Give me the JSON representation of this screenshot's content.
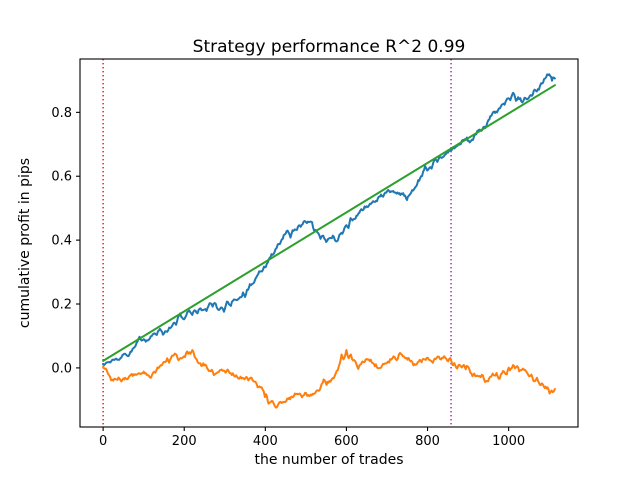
{
  "figure": {
    "background": "#ffffff",
    "frame_color": "#000000",
    "text_color": "#000000"
  },
  "chart_data": {
    "type": "line",
    "title": "Strategy performance R^2 0.99",
    "xlabel": "the number of trades",
    "ylabel": "cumulative profit in pips",
    "xlim": [
      -57,
      1171
    ],
    "ylim": [
      -0.185,
      0.967
    ],
    "grid": false,
    "legend": "none",
    "x_ticks": [
      0,
      200,
      400,
      600,
      800,
      1000
    ],
    "x_tick_labels": [
      "0",
      "200",
      "400",
      "600",
      "800",
      "1000"
    ],
    "y_ticks": [
      0.0,
      0.2,
      0.4,
      0.6,
      0.8
    ],
    "y_tick_labels": [
      "0.0",
      "0.2",
      "0.4",
      "0.6",
      "0.8"
    ],
    "vlines": [
      {
        "x": 0,
        "color": "#ff0000",
        "style": "dotted"
      },
      {
        "x": 858,
        "color": "#bf00bf",
        "style": "dotted"
      }
    ],
    "series": [
      {
        "name": "blue-cumulative-profit-curve",
        "color": "#1f77b4",
        "style": "solid",
        "jagged": true,
        "points": [
          [
            0,
            0.012
          ],
          [
            25,
            0.026
          ],
          [
            50,
            0.042
          ],
          [
            75,
            0.062
          ],
          [
            100,
            0.09
          ],
          [
            120,
            0.1
          ],
          [
            140,
            0.122
          ],
          [
            158,
            0.113
          ],
          [
            180,
            0.135
          ],
          [
            200,
            0.152
          ],
          [
            220,
            0.166
          ],
          [
            238,
            0.185
          ],
          [
            255,
            0.178
          ],
          [
            270,
            0.192
          ],
          [
            283,
            0.183
          ],
          [
            298,
            0.176
          ],
          [
            315,
            0.194
          ],
          [
            330,
            0.212
          ],
          [
            345,
            0.236
          ],
          [
            362,
            0.262
          ],
          [
            378,
            0.284
          ],
          [
            392,
            0.302
          ],
          [
            406,
            0.33
          ],
          [
            420,
            0.356
          ],
          [
            436,
            0.388
          ],
          [
            450,
            0.42
          ],
          [
            462,
            0.408
          ],
          [
            478,
            0.432
          ],
          [
            492,
            0.45
          ],
          [
            505,
            0.458
          ],
          [
            520,
            0.43
          ],
          [
            536,
            0.404
          ],
          [
            550,
            0.394
          ],
          [
            564,
            0.406
          ],
          [
            576,
            0.396
          ],
          [
            590,
            0.42
          ],
          [
            605,
            0.438
          ],
          [
            620,
            0.466
          ],
          [
            634,
            0.492
          ],
          [
            650,
            0.506
          ],
          [
            666,
            0.522
          ],
          [
            680,
            0.536
          ],
          [
            696,
            0.549
          ],
          [
            710,
            0.553
          ],
          [
            726,
            0.549
          ],
          [
            740,
            0.547
          ],
          [
            754,
            0.539
          ],
          [
            770,
            0.566
          ],
          [
            784,
            0.6
          ],
          [
            794,
            0.632
          ],
          [
            810,
            0.624
          ],
          [
            824,
            0.645
          ],
          [
            840,
            0.662
          ],
          [
            858,
            0.681
          ],
          [
            874,
            0.696
          ],
          [
            890,
            0.713
          ],
          [
            904,
            0.706
          ],
          [
            920,
            0.731
          ],
          [
            936,
            0.749
          ],
          [
            950,
            0.776
          ],
          [
            962,
            0.801
          ],
          [
            976,
            0.812
          ],
          [
            990,
            0.824
          ],
          [
            1004,
            0.838
          ],
          [
            1018,
            0.836
          ],
          [
            1034,
            0.831
          ],
          [
            1050,
            0.846
          ],
          [
            1064,
            0.871
          ],
          [
            1080,
            0.891
          ],
          [
            1090,
            0.906
          ],
          [
            1100,
            0.919
          ],
          [
            1107,
            0.899
          ],
          [
            1114,
            0.906
          ]
        ]
      },
      {
        "name": "orange-profit-curve",
        "color": "#ff7f0e",
        "style": "solid",
        "jagged": true,
        "points": [
          [
            0,
            0.005
          ],
          [
            12,
            -0.018
          ],
          [
            25,
            -0.04
          ],
          [
            38,
            -0.03
          ],
          [
            52,
            -0.036
          ],
          [
            66,
            -0.024
          ],
          [
            80,
            -0.02
          ],
          [
            95,
            -0.017
          ],
          [
            110,
            -0.022
          ],
          [
            126,
            -0.012
          ],
          [
            142,
            0.008
          ],
          [
            158,
            0.03
          ],
          [
            172,
            0.038
          ],
          [
            186,
            0.024
          ],
          [
            202,
            0.034
          ],
          [
            215,
            0.044
          ],
          [
            228,
            0.03
          ],
          [
            240,
            0.014
          ],
          [
            254,
            0.008
          ],
          [
            268,
            -0.006
          ],
          [
            283,
            -0.013
          ],
          [
            297,
            -0.008
          ],
          [
            312,
            -0.016
          ],
          [
            328,
            -0.023
          ],
          [
            344,
            -0.031
          ],
          [
            358,
            -0.039
          ],
          [
            374,
            -0.043
          ],
          [
            388,
            -0.061
          ],
          [
            399,
            -0.091
          ],
          [
            408,
            -0.112
          ],
          [
            418,
            -0.104
          ],
          [
            429,
            -0.122
          ],
          [
            440,
            -0.11
          ],
          [
            454,
            -0.096
          ],
          [
            468,
            -0.092
          ],
          [
            483,
            -0.081
          ],
          [
            498,
            -0.078
          ],
          [
            514,
            -0.086
          ],
          [
            528,
            -0.07
          ],
          [
            544,
            -0.036
          ],
          [
            558,
            -0.041
          ],
          [
            574,
            -0.016
          ],
          [
            588,
            0.042
          ],
          [
            600,
            0.056
          ],
          [
            611,
            0.042
          ],
          [
            622,
            0.02
          ],
          [
            634,
            0.01
          ],
          [
            650,
            0.028
          ],
          [
            665,
            0.015
          ],
          [
            683,
            0.0
          ],
          [
            700,
            0.016
          ],
          [
            716,
            0.036
          ],
          [
            732,
            0.047
          ],
          [
            746,
            0.03
          ],
          [
            760,
            0.022
          ],
          [
            776,
            0.018
          ],
          [
            790,
            0.028
          ],
          [
            806,
            0.024
          ],
          [
            820,
            0.028
          ],
          [
            836,
            0.032
          ],
          [
            856,
            0.031
          ],
          [
            866,
            0.015
          ],
          [
            880,
            0.008
          ],
          [
            894,
            -0.004
          ],
          [
            906,
            -0.016
          ],
          [
            920,
            -0.026
          ],
          [
            931,
            -0.029
          ],
          [
            942,
            -0.044
          ],
          [
            956,
            -0.028
          ],
          [
            970,
            -0.016
          ],
          [
            986,
            -0.01
          ],
          [
            1000,
            0.001
          ],
          [
            1011,
            0.009
          ],
          [
            1026,
            -0.011
          ],
          [
            1040,
            -0.006
          ],
          [
            1056,
            -0.021
          ],
          [
            1070,
            -0.031
          ],
          [
            1084,
            -0.051
          ],
          [
            1096,
            -0.061
          ],
          [
            1106,
            -0.071
          ],
          [
            1114,
            -0.066
          ]
        ]
      },
      {
        "name": "green-linear-fit-line",
        "color": "#2ca02c",
        "style": "solid",
        "jagged": false,
        "points": [
          [
            0,
            0.022
          ],
          [
            1114,
            0.885
          ]
        ]
      }
    ]
  }
}
